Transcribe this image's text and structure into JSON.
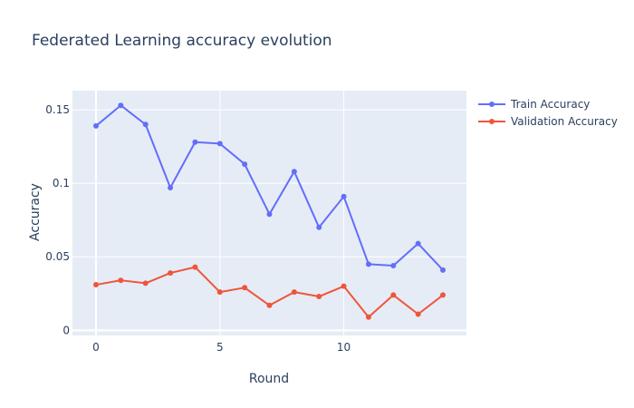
{
  "chart_data": {
    "type": "line",
    "title": "Federated Learning accuracy evolution",
    "xlabel": "Round",
    "ylabel": "Accuracy",
    "x": [
      0,
      1,
      2,
      3,
      4,
      5,
      6,
      7,
      8,
      9,
      10,
      11,
      12,
      13,
      14
    ],
    "xlim": [
      -0.95,
      14.95
    ],
    "ylim": [
      -0.0035,
      0.163
    ],
    "xticks": [
      0,
      5,
      10
    ],
    "yticks": [
      0,
      0.05,
      0.1,
      0.15
    ],
    "xtick_labels": [
      "0",
      "5",
      "10"
    ],
    "ytick_labels": [
      "0",
      "0.05",
      "0.1",
      "0.15"
    ],
    "grid": true,
    "legend_position": "top-right",
    "series": [
      {
        "name": "Train Accuracy",
        "color": "#636efa",
        "values": [
          0.139,
          0.153,
          0.14,
          0.097,
          0.128,
          0.127,
          0.113,
          0.079,
          0.108,
          0.07,
          0.091,
          0.045,
          0.044,
          0.059,
          0.041
        ]
      },
      {
        "name": "Validation Accuracy",
        "color": "#ef553b",
        "values": [
          0.031,
          0.034,
          0.032,
          0.039,
          0.043,
          0.026,
          0.029,
          0.017,
          0.026,
          0.023,
          0.03,
          0.009,
          0.024,
          0.011,
          0.024
        ]
      }
    ],
    "plot_bg": "#e5ecf6",
    "grid_color": "#ffffff"
  }
}
